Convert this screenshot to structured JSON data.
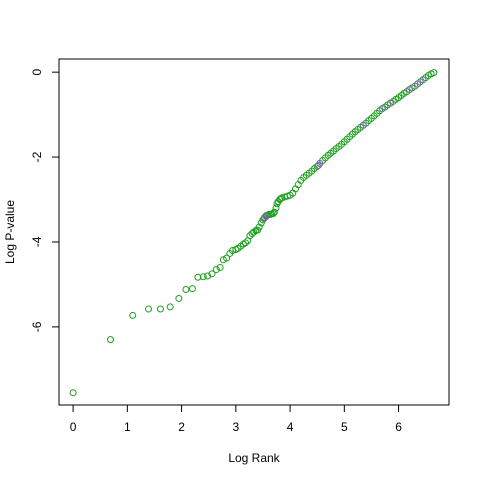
{
  "chart_data": {
    "type": "scatter",
    "xlabel": "Log Rank",
    "ylabel": "Log P-value",
    "xlim": [
      -0.26,
      6.93
    ],
    "ylim": [
      -7.84,
      0.31
    ],
    "xticks": [
      0,
      1,
      2,
      3,
      4,
      5,
      6
    ],
    "yticks": [
      0,
      -2,
      -4,
      -6
    ],
    "series": [
      {
        "color": "#1a9e1a",
        "x": [
          0,
          0.69,
          1.1,
          1.39,
          1.61,
          1.79,
          1.95,
          2.08,
          2.2,
          2.3,
          2.4,
          2.48,
          2.56,
          2.64,
          2.71,
          2.77,
          2.83,
          2.89,
          2.94,
          3.0,
          3.04,
          3.09,
          3.14,
          3.18,
          3.22,
          3.26,
          3.3,
          3.33,
          3.37,
          3.4,
          3.43,
          3.47,
          3.5,
          3.53,
          3.56,
          3.58,
          3.61,
          3.64,
          3.66,
          3.69,
          3.71,
          3.74,
          3.76,
          3.78,
          3.81,
          3.83,
          3.85,
          3.9,
          3.95,
          4.0,
          4.05,
          4.1,
          4.15,
          4.2,
          4.25,
          4.3,
          4.35,
          4.4,
          4.45,
          4.5,
          4.55,
          4.6,
          4.65,
          4.7,
          4.75,
          4.8,
          4.85,
          4.9,
          4.95,
          5.0,
          5.05,
          5.1,
          5.15,
          5.2,
          5.25,
          5.3,
          5.35,
          5.4,
          5.45,
          5.5,
          5.55,
          5.6,
          5.65,
          5.7,
          5.75,
          5.8,
          5.85,
          5.9,
          5.95,
          6.0,
          6.05,
          6.1,
          6.15,
          6.2,
          6.25,
          6.3,
          6.35,
          6.4,
          6.45,
          6.5,
          6.55,
          6.6,
          6.65
        ],
        "values": [
          -7.55,
          -6.3,
          -5.73,
          -5.58,
          -5.58,
          -5.53,
          -5.33,
          -5.12,
          -5.1,
          -4.83,
          -4.82,
          -4.8,
          -4.75,
          -4.65,
          -4.6,
          -4.42,
          -4.38,
          -4.27,
          -4.2,
          -4.18,
          -4.15,
          -4.1,
          -4.05,
          -4.02,
          -3.97,
          -3.85,
          -3.8,
          -3.77,
          -3.73,
          -3.72,
          -3.65,
          -3.55,
          -3.48,
          -3.42,
          -3.38,
          -3.37,
          -3.35,
          -3.35,
          -3.34,
          -3.33,
          -3.3,
          -3.2,
          -3.1,
          -3.05,
          -3.0,
          -2.98,
          -2.96,
          -2.94,
          -2.92,
          -2.9,
          -2.85,
          -2.75,
          -2.65,
          -2.55,
          -2.48,
          -2.43,
          -2.38,
          -2.33,
          -2.27,
          -2.22,
          -2.15,
          -2.08,
          -2.02,
          -1.96,
          -1.91,
          -1.86,
          -1.8,
          -1.75,
          -1.7,
          -1.64,
          -1.58,
          -1.52,
          -1.46,
          -1.4,
          -1.35,
          -1.3,
          -1.25,
          -1.2,
          -1.14,
          -1.09,
          -1.03,
          -0.97,
          -0.91,
          -0.86,
          -0.82,
          -0.77,
          -0.73,
          -0.69,
          -0.64,
          -0.6,
          -0.55,
          -0.5,
          -0.46,
          -0.41,
          -0.37,
          -0.33,
          -0.28,
          -0.23,
          -0.18,
          -0.13,
          -0.08,
          -0.04,
          -0.01
        ]
      },
      {
        "color": "#8a5cc8",
        "x": [
          3.52,
          3.56,
          4.52,
          4.55,
          5.35,
          5.7,
          5.85,
          6.2,
          6.35,
          6.45
        ],
        "values": [
          -3.45,
          -3.4,
          -2.2,
          -2.15,
          -1.25,
          -0.86,
          -0.73,
          -0.41,
          -0.28,
          -0.18
        ]
      }
    ]
  }
}
